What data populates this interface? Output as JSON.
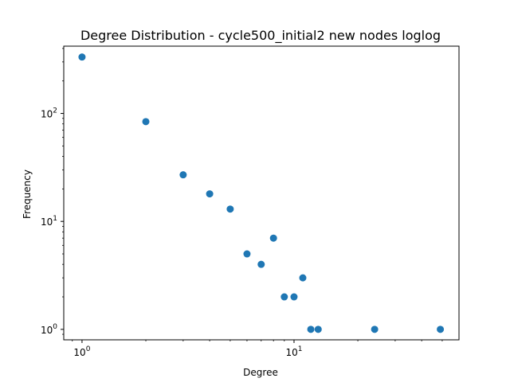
{
  "chart_data": {
    "type": "scatter",
    "title": "Degree Distribution - cycle500_initial2 new nodes loglog",
    "xlabel": "Degree",
    "ylabel": "Frequency",
    "xscale": "log",
    "yscale": "log",
    "xlim": [
      0.82,
      60
    ],
    "ylim": [
      0.8,
      420
    ],
    "x_ticks": [
      {
        "value": 1,
        "base": "10",
        "exp": "0"
      },
      {
        "value": 10,
        "base": "10",
        "exp": "1"
      }
    ],
    "y_ticks": [
      {
        "value": 1,
        "base": "10",
        "exp": "0"
      },
      {
        "value": 10,
        "base": "10",
        "exp": "1"
      },
      {
        "value": 100,
        "base": "10",
        "exp": "2"
      }
    ],
    "grid": false,
    "marker_color": "#1f77b4",
    "points": [
      {
        "x": 1,
        "y": 333
      },
      {
        "x": 2,
        "y": 84
      },
      {
        "x": 3,
        "y": 27
      },
      {
        "x": 4,
        "y": 18
      },
      {
        "x": 5,
        "y": 13
      },
      {
        "x": 6,
        "y": 5
      },
      {
        "x": 7,
        "y": 4
      },
      {
        "x": 8,
        "y": 7
      },
      {
        "x": 9,
        "y": 2
      },
      {
        "x": 10,
        "y": 2
      },
      {
        "x": 11,
        "y": 3
      },
      {
        "x": 12,
        "y": 1
      },
      {
        "x": 13,
        "y": 1
      },
      {
        "x": 24,
        "y": 1
      },
      {
        "x": 49,
        "y": 1
      }
    ]
  }
}
